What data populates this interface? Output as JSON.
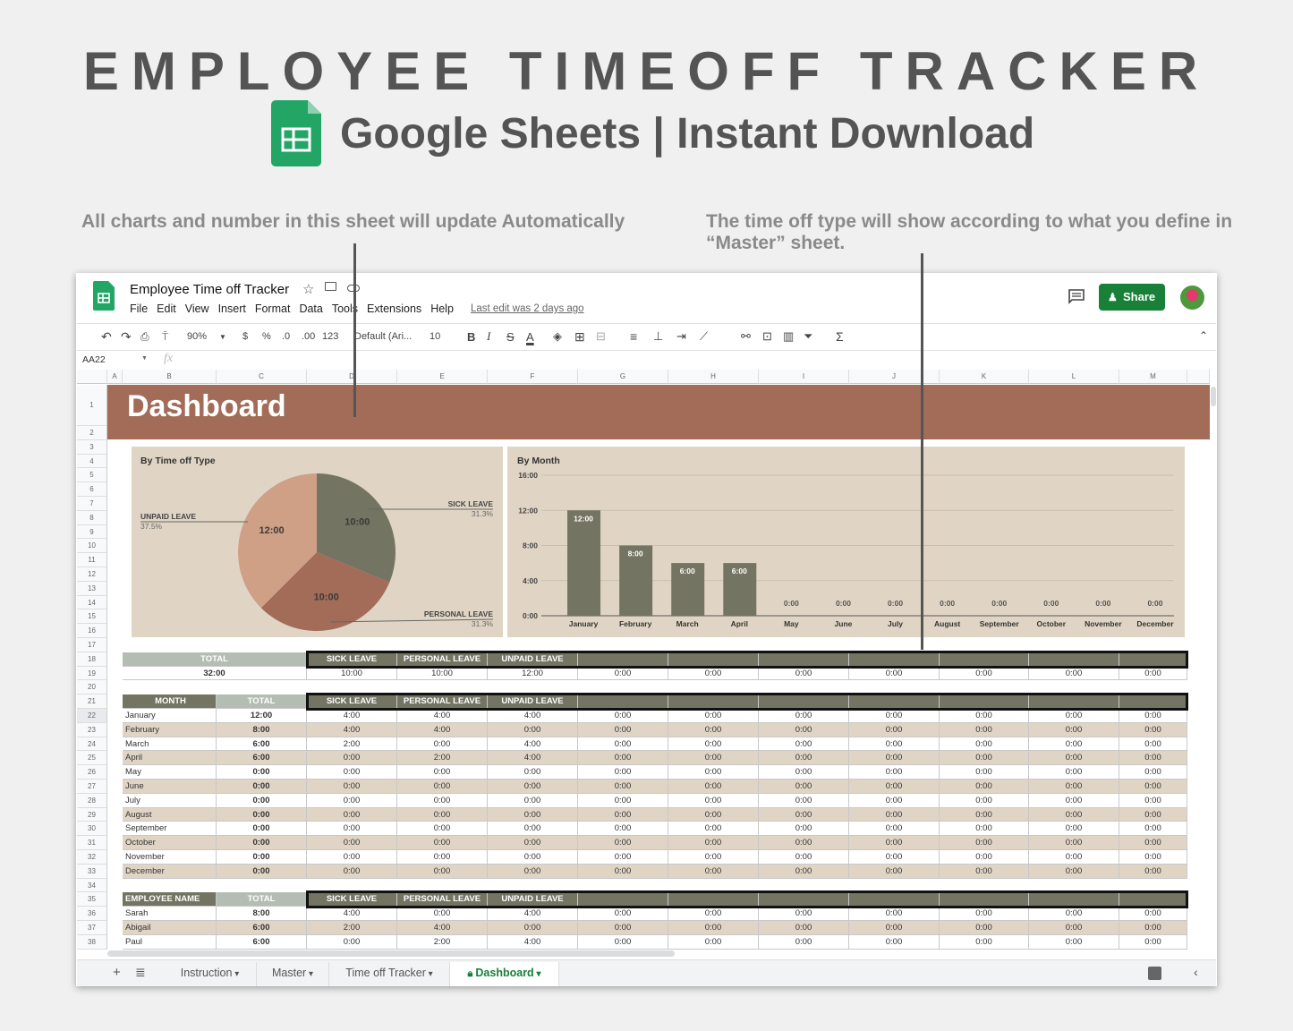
{
  "promo": {
    "title": "EMPLOYEE TIMEOFF TRACKER",
    "subtitle": "Google Sheets | Instant Download",
    "note_left": "All charts and number in this sheet will update Automatically",
    "note_right": "The time off type will show according to what you define in “Master” sheet."
  },
  "doc": {
    "title": "Employee Time off Tracker",
    "last_edit": "Last edit was 2 days ago",
    "share": "Share",
    "menu": [
      "File",
      "Edit",
      "View",
      "Insert",
      "Format",
      "Data",
      "Tools",
      "Extensions",
      "Help"
    ]
  },
  "toolbar": {
    "zoom": "90%",
    "currency": "$",
    "percent": "%",
    "dec_less": ".0",
    "dec_more": ".00",
    "format": "123",
    "font": "Default (Ari...",
    "size": "10",
    "bold": "B",
    "italic": "I",
    "strike": "S",
    "textcolor": "A"
  },
  "formula": {
    "cell_ref": "AA22",
    "fx": "fx"
  },
  "columns": [
    "A",
    "B",
    "C",
    "D",
    "E",
    "F",
    "G",
    "H",
    "I",
    "J",
    "K",
    "L",
    "M"
  ],
  "banner": "Dashboard",
  "colors": {
    "banner": "#a26c58",
    "header": "#737461",
    "header_light": "#b4bdb2",
    "panel": "#e0d5c5",
    "sick": "#737461",
    "personal": "#a26c58",
    "unpaid": "#cf9f86",
    "share": "#188038"
  },
  "chart_data": [
    {
      "type": "pie",
      "title": "By Time off Type",
      "slices": [
        {
          "label": "SICK LEAVE",
          "value": 10,
          "display": "10:00",
          "pct": "31.3%"
        },
        {
          "label": "PERSONAL LEAVE",
          "value": 10,
          "display": "10:00",
          "pct": "31.3%"
        },
        {
          "label": "UNPAID LEAVE",
          "value": 12,
          "display": "12:00",
          "pct": "37.5%"
        }
      ]
    },
    {
      "type": "bar",
      "title": "By Month",
      "categories": [
        "January",
        "February",
        "March",
        "April",
        "May",
        "June",
        "July",
        "August",
        "September",
        "October",
        "November",
        "December"
      ],
      "values": [
        12,
        8,
        6,
        6,
        0,
        0,
        0,
        0,
        0,
        0,
        0,
        0
      ],
      "labels": [
        "12:00",
        "8:00",
        "6:00",
        "6:00",
        "0:00",
        "0:00",
        "0:00",
        "0:00",
        "0:00",
        "0:00",
        "0:00",
        "0:00"
      ],
      "yticks": [
        "0:00",
        "4:00",
        "8:00",
        "12:00",
        "16:00"
      ],
      "ylim": [
        0,
        16
      ],
      "grid": true
    }
  ],
  "totals": {
    "header": "TOTAL",
    "value": "32:00",
    "types": [
      "SICK LEAVE",
      "PERSONAL LEAVE",
      "UNPAID LEAVE",
      "",
      "",
      "",
      "",
      "",
      "",
      ""
    ],
    "values": [
      "10:00",
      "10:00",
      "12:00",
      "0:00",
      "0:00",
      "0:00",
      "0:00",
      "0:00",
      "0:00",
      "0:00"
    ]
  },
  "months": {
    "h1": "MONTH",
    "h2": "TOTAL",
    "types": [
      "SICK LEAVE",
      "PERSONAL LEAVE",
      "UNPAID LEAVE",
      "",
      "",
      "",
      "",
      "",
      "",
      ""
    ],
    "rows": [
      {
        "name": "January",
        "total": "12:00",
        "v": [
          "4:00",
          "4:00",
          "4:00",
          "0:00",
          "0:00",
          "0:00",
          "0:00",
          "0:00",
          "0:00",
          "0:00"
        ]
      },
      {
        "name": "February",
        "total": "8:00",
        "v": [
          "4:00",
          "4:00",
          "0:00",
          "0:00",
          "0:00",
          "0:00",
          "0:00",
          "0:00",
          "0:00",
          "0:00"
        ]
      },
      {
        "name": "March",
        "total": "6:00",
        "v": [
          "2:00",
          "0:00",
          "4:00",
          "0:00",
          "0:00",
          "0:00",
          "0:00",
          "0:00",
          "0:00",
          "0:00"
        ]
      },
      {
        "name": "April",
        "total": "6:00",
        "v": [
          "0:00",
          "2:00",
          "4:00",
          "0:00",
          "0:00",
          "0:00",
          "0:00",
          "0:00",
          "0:00",
          "0:00"
        ]
      },
      {
        "name": "May",
        "total": "0:00",
        "v": [
          "0:00",
          "0:00",
          "0:00",
          "0:00",
          "0:00",
          "0:00",
          "0:00",
          "0:00",
          "0:00",
          "0:00"
        ]
      },
      {
        "name": "June",
        "total": "0:00",
        "v": [
          "0:00",
          "0:00",
          "0:00",
          "0:00",
          "0:00",
          "0:00",
          "0:00",
          "0:00",
          "0:00",
          "0:00"
        ]
      },
      {
        "name": "July",
        "total": "0:00",
        "v": [
          "0:00",
          "0:00",
          "0:00",
          "0:00",
          "0:00",
          "0:00",
          "0:00",
          "0:00",
          "0:00",
          "0:00"
        ]
      },
      {
        "name": "August",
        "total": "0:00",
        "v": [
          "0:00",
          "0:00",
          "0:00",
          "0:00",
          "0:00",
          "0:00",
          "0:00",
          "0:00",
          "0:00",
          "0:00"
        ]
      },
      {
        "name": "September",
        "total": "0:00",
        "v": [
          "0:00",
          "0:00",
          "0:00",
          "0:00",
          "0:00",
          "0:00",
          "0:00",
          "0:00",
          "0:00",
          "0:00"
        ]
      },
      {
        "name": "October",
        "total": "0:00",
        "v": [
          "0:00",
          "0:00",
          "0:00",
          "0:00",
          "0:00",
          "0:00",
          "0:00",
          "0:00",
          "0:00",
          "0:00"
        ]
      },
      {
        "name": "November",
        "total": "0:00",
        "v": [
          "0:00",
          "0:00",
          "0:00",
          "0:00",
          "0:00",
          "0:00",
          "0:00",
          "0:00",
          "0:00",
          "0:00"
        ]
      },
      {
        "name": "December",
        "total": "0:00",
        "v": [
          "0:00",
          "0:00",
          "0:00",
          "0:00",
          "0:00",
          "0:00",
          "0:00",
          "0:00",
          "0:00",
          "0:00"
        ]
      }
    ]
  },
  "employees": {
    "h1": "EMPLOYEE NAME",
    "h2": "TOTAL",
    "types": [
      "SICK LEAVE",
      "PERSONAL LEAVE",
      "UNPAID LEAVE",
      "",
      "",
      "",
      "",
      "",
      "",
      ""
    ],
    "rows": [
      {
        "name": "Sarah",
        "total": "8:00",
        "v": [
          "4:00",
          "0:00",
          "4:00",
          "0:00",
          "0:00",
          "0:00",
          "0:00",
          "0:00",
          "0:00",
          "0:00"
        ]
      },
      {
        "name": "Abigail",
        "total": "6:00",
        "v": [
          "2:00",
          "4:00",
          "0:00",
          "0:00",
          "0:00",
          "0:00",
          "0:00",
          "0:00",
          "0:00",
          "0:00"
        ]
      },
      {
        "name": "Paul",
        "total": "6:00",
        "v": [
          "0:00",
          "2:00",
          "4:00",
          "0:00",
          "0:00",
          "0:00",
          "0:00",
          "0:00",
          "0:00",
          "0:00"
        ]
      }
    ]
  },
  "tabs": [
    {
      "label": "Instruction"
    },
    {
      "label": "Master"
    },
    {
      "label": "Time off Tracker"
    },
    {
      "label": "Dashboard",
      "active": true
    }
  ]
}
